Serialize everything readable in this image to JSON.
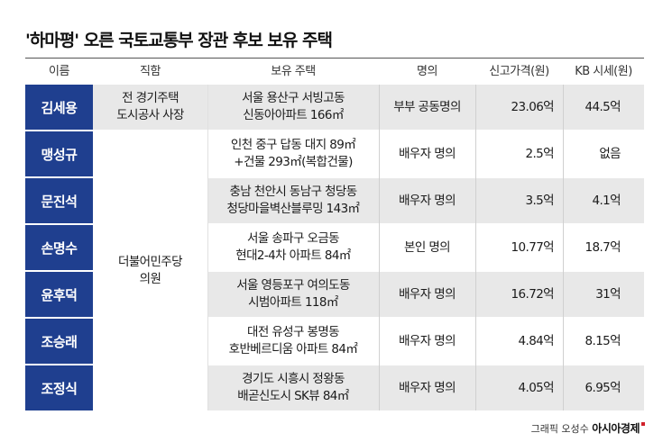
{
  "title": "'하마평' 오른 국토교통부 장관 후보 보유 주택",
  "headers": {
    "name": "이름",
    "position": "직함",
    "house": "보유 주택",
    "owner": "명의",
    "reported": "신고가격(원)",
    "kb": "KB 시세(원)"
  },
  "rows": [
    {
      "name": "김세용",
      "position": [
        "전 경기주택",
        "도시공사 사장"
      ],
      "house": [
        "서울 용산구 서빙고동",
        "신동아아파트 166㎡"
      ],
      "owner": "부부 공동명의",
      "reported": "23.06억",
      "kb": "44.5억"
    },
    {
      "name": "맹성규",
      "house": [
        "인천 중구 답동 대지 89㎡",
        "+건물 293㎡(복합건물)"
      ],
      "owner": "배우자 명의",
      "reported": "2.5억",
      "kb": "없음"
    },
    {
      "name": "문진석",
      "house": [
        "충남 천안시 동남구 청당동",
        "청당마을벽산블루밍 143㎡"
      ],
      "owner": "배우자 명의",
      "reported": "3.5억",
      "kb": "4.1억"
    },
    {
      "name": "손명수",
      "house": [
        "서울 송파구 오금동",
        "현대2-4차 아파트 84㎡"
      ],
      "owner": "본인 명의",
      "reported": "10.77억",
      "kb": "18.7억"
    },
    {
      "name": "윤후덕",
      "house": [
        "서울 영등포구 여의도동",
        "시범아파트 118㎡"
      ],
      "owner": "배우자 명의",
      "reported": "16.72억",
      "kb": "31억"
    },
    {
      "name": "조승래",
      "house": [
        "대전 유성구 봉명동",
        "호반베르디움 아파트 84㎡"
      ],
      "owner": "배우자 명의",
      "reported": "4.84억",
      "kb": "8.15억"
    },
    {
      "name": "조정식",
      "house": [
        "경기도 시흥시 정왕동",
        "배곧신도시 SK뷰 84㎡"
      ],
      "owner": "배우자 명의",
      "reported": "4.05억",
      "kb": "6.95억"
    }
  ],
  "merged_position": [
    "더불어민주당",
    "의원"
  ],
  "credit": {
    "label": "그래픽 오성수",
    "brand": "아시아경제"
  }
}
